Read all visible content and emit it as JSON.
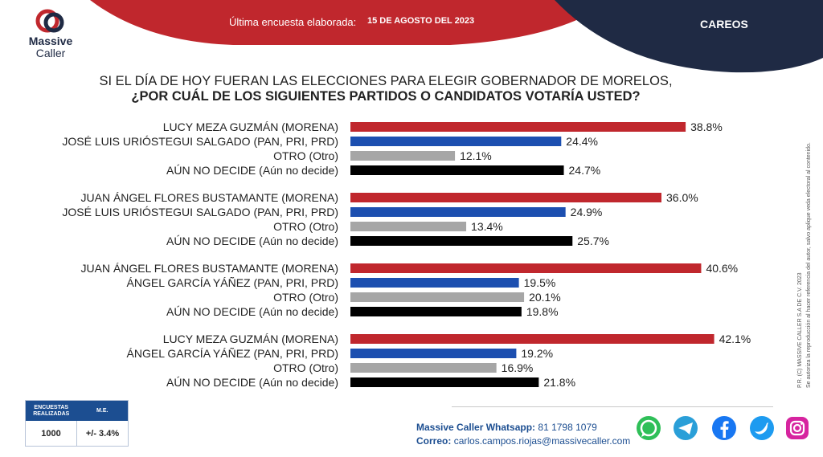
{
  "header": {
    "last_survey_label": "Última encuesta elaborada:",
    "last_survey_date": "15 DE AGOSTO DEL 2023",
    "section_tag": "CAREOS",
    "colors": {
      "red": "#c0272d",
      "navy": "#1f2a44"
    }
  },
  "logo": {
    "line1": "Massive",
    "line2": "Caller"
  },
  "question": {
    "line1": "SI EL DÍA DE HOY FUERAN LAS ELECCIONES PARA ELEGIR GOBERNADOR DE MORELOS,",
    "line2": "¿POR CUÁL DE LOS SIGUIENTES PARTIDOS O CANDIDATOS  VOTARÍA USTED?"
  },
  "chart_data": {
    "type": "bar",
    "orientation": "horizontal",
    "unit": "%",
    "xlim": [
      0,
      50
    ],
    "grid": false,
    "colors": {
      "morena": "#c0272d",
      "pan": "#1c4fb0",
      "otro": "#a6a6a6",
      "nodecide": "#000000"
    },
    "groups": [
      {
        "rows": [
          {
            "label": "LUCY MEZA GUZMÁN (MORENA)",
            "value": 38.8,
            "value_label": "38.8%",
            "color_key": "morena"
          },
          {
            "label": "JOSÉ LUIS URIÓSTEGUI SALGADO (PAN, PRI, PRD)",
            "value": 24.4,
            "value_label": "24.4%",
            "color_key": "pan"
          },
          {
            "label": "OTRO (Otro)",
            "value": 12.1,
            "value_label": "12.1%",
            "color_key": "otro"
          },
          {
            "label": "AÚN NO DECIDE (Aún no decide)",
            "value": 24.7,
            "value_label": "24.7%",
            "color_key": "nodecide"
          }
        ]
      },
      {
        "rows": [
          {
            "label": "JUAN ÁNGEL FLORES BUSTAMANTE (MORENA)",
            "value": 36.0,
            "value_label": "36.0%",
            "color_key": "morena"
          },
          {
            "label": "JOSÉ LUIS URIÓSTEGUI SALGADO (PAN, PRI, PRD)",
            "value": 24.9,
            "value_label": "24.9%",
            "color_key": "pan"
          },
          {
            "label": "OTRO (Otro)",
            "value": 13.4,
            "value_label": "13.4%",
            "color_key": "otro"
          },
          {
            "label": "AÚN NO DECIDE (Aún no decide)",
            "value": 25.7,
            "value_label": "25.7%",
            "color_key": "nodecide"
          }
        ]
      },
      {
        "rows": [
          {
            "label": "JUAN ÁNGEL FLORES BUSTAMANTE (MORENA)",
            "value": 40.6,
            "value_label": "40.6%",
            "color_key": "morena"
          },
          {
            "label": "ÁNGEL GARCÍA YÁÑEZ (PAN, PRI, PRD)",
            "value": 19.5,
            "value_label": "19.5%",
            "color_key": "pan"
          },
          {
            "label": "OTRO (Otro)",
            "value": 20.1,
            "value_label": "20.1%",
            "color_key": "otro"
          },
          {
            "label": "AÚN NO DECIDE (Aún no decide)",
            "value": 19.8,
            "value_label": "19.8%",
            "color_key": "nodecide"
          }
        ]
      },
      {
        "rows": [
          {
            "label": "LUCY MEZA GUZMÁN (MORENA)",
            "value": 42.1,
            "value_label": "42.1%",
            "color_key": "morena"
          },
          {
            "label": "ÁNGEL GARCÍA YÁÑEZ (PAN, PRI, PRD)",
            "value": 19.2,
            "value_label": "19.2%",
            "color_key": "pan"
          },
          {
            "label": "OTRO (Otro)",
            "value": 16.9,
            "value_label": "16.9%",
            "color_key": "otro"
          },
          {
            "label": "AÚN NO DECIDE (Aún no decide)",
            "value": 21.8,
            "value_label": "21.8%",
            "color_key": "nodecide"
          }
        ]
      }
    ]
  },
  "sidebar_note": {
    "line1": "P.R. (C) MASSIVE CALLER S.A DE C.V. 2023",
    "line2": "Se autoriza la reproducción al hacer referencia del autor, salvo aplique veda electoral al contenido."
  },
  "sample": {
    "col1_header": "ENCUESTAS REALIZADAS",
    "col2_header": "M.E.",
    "col1_value": "1000",
    "col2_value": "+/- 3.4%"
  },
  "contact": {
    "whatsapp_label": "Massive Caller Whatsapp:",
    "whatsapp_number": "81 1798  1079",
    "email_label": "Correo:",
    "email": "carlos.campos.riojas@massivecaller.com"
  },
  "social_icons": [
    "whatsapp-icon",
    "telegram-icon",
    "facebook-icon",
    "twitter-icon",
    "instagram-icon"
  ]
}
